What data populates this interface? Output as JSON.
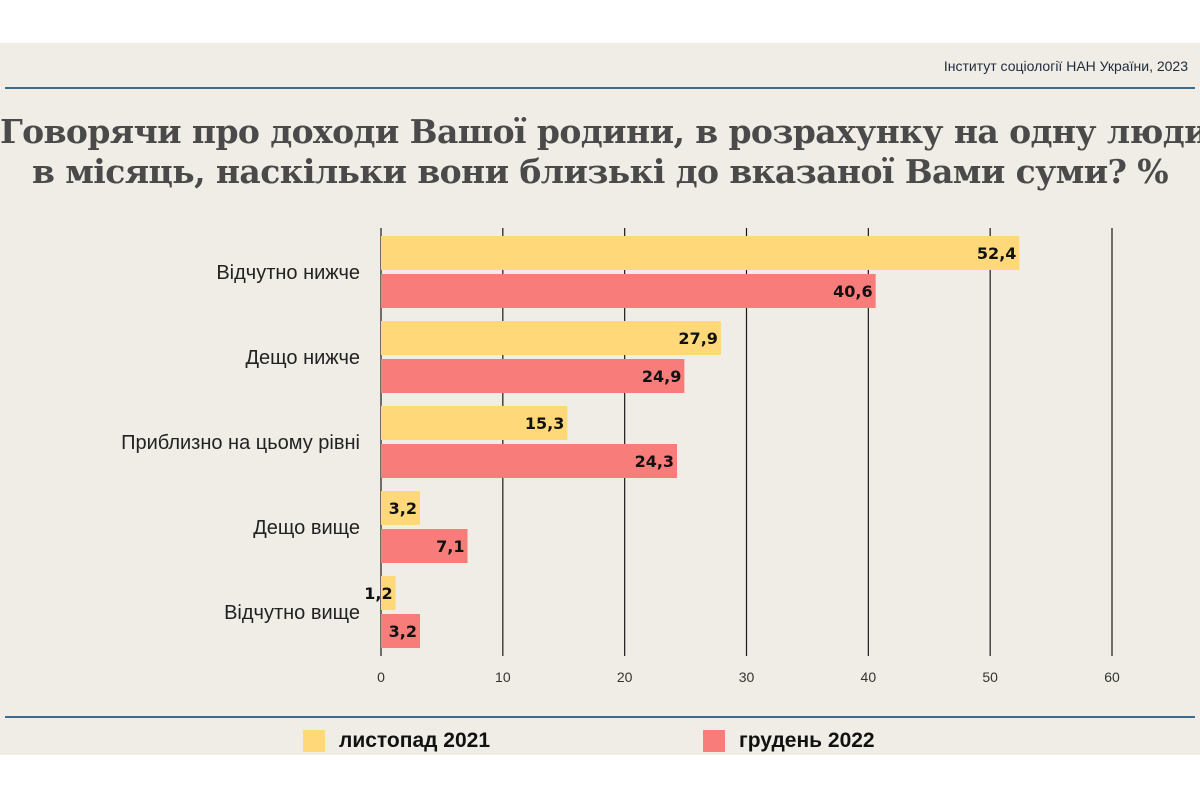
{
  "source": "Інститут соціології НАН України, 2023",
  "title_lines": [
    "Говорячи про доходи Вашої родини, в розрахунку на одну людину",
    "в місяць, наскільки вони близькі до вказаної Вами суми? %"
  ],
  "colors": {
    "series_2021": "#ffd87a",
    "series_2022": "#f77c7a",
    "grid": "#1a1a1a",
    "rule": "#3f6a8c"
  },
  "chart_data": {
    "type": "bar",
    "orientation": "horizontal",
    "title": "Говорячи про доходи Вашої родини, в розрахунку на одну людину в місяць, наскільки вони близькі до вказаної Вами суми? %",
    "categories": [
      "Відчутно нижче",
      "Дещо нижче",
      "Приблизно на цьому рівні",
      "Дещо вище",
      "Відчутно вище"
    ],
    "series": [
      {
        "name": "листопад 2021",
        "values": [
          52.4,
          27.9,
          15.3,
          3.2,
          1.2
        ],
        "labels": [
          "52,4",
          "27,9",
          "15,3",
          "3,2",
          "1,2"
        ]
      },
      {
        "name": "грудень 2022",
        "values": [
          40.6,
          24.9,
          24.3,
          7.1,
          3.2
        ],
        "labels": [
          "40,6",
          "24,9",
          "24,3",
          "7,1",
          "3,2"
        ]
      }
    ],
    "xlim": [
      0,
      60
    ],
    "xticks": [
      0,
      10,
      20,
      30,
      40,
      50,
      60
    ],
    "grid": true,
    "legend_position": "bottom"
  },
  "legend": [
    {
      "label": "листопад 2021"
    },
    {
      "label": "грудень 2022"
    }
  ]
}
